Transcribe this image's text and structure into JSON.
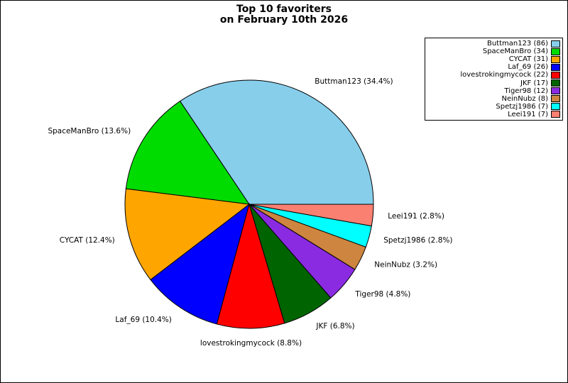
{
  "title": {
    "line1": "Top 10 favoriters",
    "line2": "on February 10th 2026"
  },
  "chart_data": {
    "type": "pie",
    "title": "Top 10 favoriters on February 10th 2026",
    "start_angle_deg": 0,
    "direction": "counterclockwise",
    "legend_position": "upper right",
    "label_format": "{label} ({pct}%)",
    "legend_format": "{label} ({count})",
    "slices": [
      {
        "label": "Buttman123",
        "count": 86,
        "pct": 34.4,
        "color": "#87CEEB"
      },
      {
        "label": "SpaceManBro",
        "count": 34,
        "pct": 13.6,
        "color": "#00DC00"
      },
      {
        "label": "CYCAT",
        "count": 31,
        "pct": 12.4,
        "color": "#FFA500"
      },
      {
        "label": "Laf_69",
        "count": 26,
        "pct": 10.4,
        "color": "#0000FF"
      },
      {
        "label": "lovestrokingmycock",
        "count": 22,
        "pct": 8.8,
        "color": "#FF0000"
      },
      {
        "label": "JKF",
        "count": 17,
        "pct": 6.8,
        "color": "#006400"
      },
      {
        "label": "Tiger98",
        "count": 12,
        "pct": 4.8,
        "color": "#8A2BE2"
      },
      {
        "label": "NeinNubz",
        "count": 8,
        "pct": 3.2,
        "color": "#CD853F"
      },
      {
        "label": "Spetzj1986",
        "count": 7,
        "pct": 2.8,
        "color": "#00FFFF"
      },
      {
        "label": "Leei191",
        "count": 7,
        "pct": 2.8,
        "color": "#FA8072"
      }
    ]
  }
}
